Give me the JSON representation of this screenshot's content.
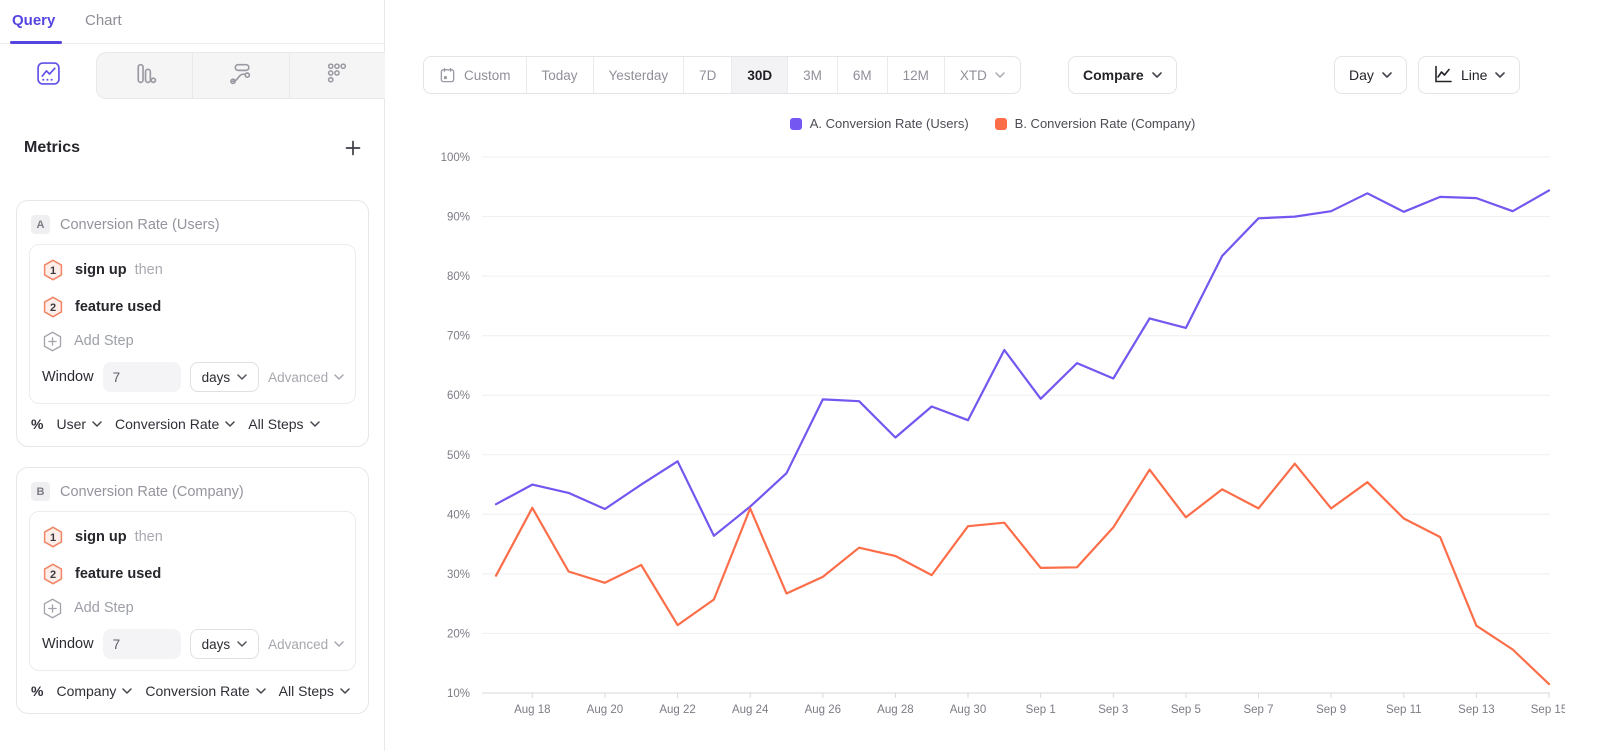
{
  "sidebar": {
    "tabs": [
      {
        "label": "Query",
        "active": true
      },
      {
        "label": "Chart",
        "active": false
      }
    ],
    "chart_type_tabs": [
      {
        "icon": "insights-line",
        "active": true
      },
      {
        "icon": "bar-chart",
        "active": false
      },
      {
        "icon": "flows",
        "active": false
      },
      {
        "icon": "funnel-dots",
        "active": false
      }
    ],
    "metrics_header": {
      "title": "Metrics",
      "add_label": "+"
    },
    "metric_cards": [
      {
        "id": "A",
        "title": "Conversion Rate (Users)",
        "steps": [
          {
            "n": "1",
            "label": "sign up",
            "suffix": "then"
          },
          {
            "n": "2",
            "label": "feature used",
            "suffix": ""
          }
        ],
        "add_step_label": "Add Step",
        "window": {
          "label": "Window",
          "value": "7",
          "unit": "days",
          "advanced_label": "Advanced"
        },
        "measurement": {
          "prefix": "%",
          "entity": "User",
          "metric": "Conversion Rate",
          "steps": "All Steps"
        }
      },
      {
        "id": "B",
        "title": "Conversion Rate (Company)",
        "steps": [
          {
            "n": "1",
            "label": "sign up",
            "suffix": "then"
          },
          {
            "n": "2",
            "label": "feature used",
            "suffix": ""
          }
        ],
        "add_step_label": "Add Step",
        "window": {
          "label": "Window",
          "value": "7",
          "unit": "days",
          "advanced_label": "Advanced"
        },
        "measurement": {
          "prefix": "%",
          "entity": "Company",
          "metric": "Conversion Rate",
          "steps": "All Steps"
        }
      }
    ]
  },
  "toolbar": {
    "date_ranges": [
      {
        "label": "Custom",
        "icon": "calendar"
      },
      {
        "label": "Today"
      },
      {
        "label": "Yesterday"
      },
      {
        "label": "7D"
      },
      {
        "label": "30D",
        "active": true
      },
      {
        "label": "3M"
      },
      {
        "label": "6M"
      },
      {
        "label": "12M"
      },
      {
        "label": "XTD",
        "chevron": true
      }
    ],
    "compare_label": "Compare",
    "granularity_label": "Day",
    "chart_style_label": "Line"
  },
  "legend": [
    {
      "label": "A. Conversion Rate (Users)",
      "color": "#7456F0"
    },
    {
      "label": "B. Conversion Rate (Company)",
      "color": "#FC6E49"
    }
  ],
  "chart_data": {
    "type": "line",
    "title": "",
    "x": [
      "Aug 17",
      "Aug 18",
      "Aug 19",
      "Aug 20",
      "Aug 21",
      "Aug 22",
      "Aug 23",
      "Aug 24",
      "Aug 25",
      "Aug 26",
      "Aug 27",
      "Aug 28",
      "Aug 29",
      "Aug 30",
      "Aug 31",
      "Sep 1",
      "Sep 2",
      "Sep 3",
      "Sep 4",
      "Sep 5",
      "Sep 6",
      "Sep 7",
      "Sep 8",
      "Sep 9",
      "Sep 10",
      "Sep 11",
      "Sep 12",
      "Sep 13",
      "Sep 14",
      "Sep 15"
    ],
    "x_tick_labels": [
      "Aug 18",
      "Aug 20",
      "Aug 22",
      "Aug 24",
      "Aug 26",
      "Aug 28",
      "Aug 30",
      "Sep 1",
      "Sep 3",
      "Sep 5",
      "Sep 7",
      "Sep 9",
      "Sep 11",
      "Sep 13",
      "Sep 15"
    ],
    "series": [
      {
        "name": "A. Conversion Rate (Users)",
        "color": "#7456F0",
        "values": [
          41.7,
          45.0,
          43.6,
          40.9,
          45.0,
          48.9,
          36.4,
          41.3,
          46.9,
          59.3,
          59.0,
          52.9,
          58.1,
          55.8,
          67.6,
          59.4,
          65.4,
          62.8,
          72.9,
          71.3,
          83.4,
          89.7,
          90.0,
          90.9,
          93.9,
          90.8,
          93.3,
          93.1,
          90.9,
          94.4
        ]
      },
      {
        "name": "B. Conversion Rate (Company)",
        "color": "#FC6E49",
        "values": [
          29.7,
          41.1,
          30.4,
          28.5,
          31.5,
          21.4,
          25.7,
          41.0,
          26.7,
          29.5,
          34.4,
          33.0,
          29.8,
          38.0,
          38.6,
          31.0,
          31.1,
          37.8,
          47.5,
          39.5,
          44.2,
          41.0,
          48.5,
          41.0,
          45.4,
          39.3,
          36.2,
          21.3,
          17.3,
          11.5
        ]
      }
    ],
    "y_unit": "%",
    "ylim": [
      10,
      100
    ],
    "y_ticks": [
      100,
      90,
      80,
      70,
      60,
      50,
      40,
      30,
      20,
      10
    ],
    "grid": true,
    "legend_position": "top"
  }
}
